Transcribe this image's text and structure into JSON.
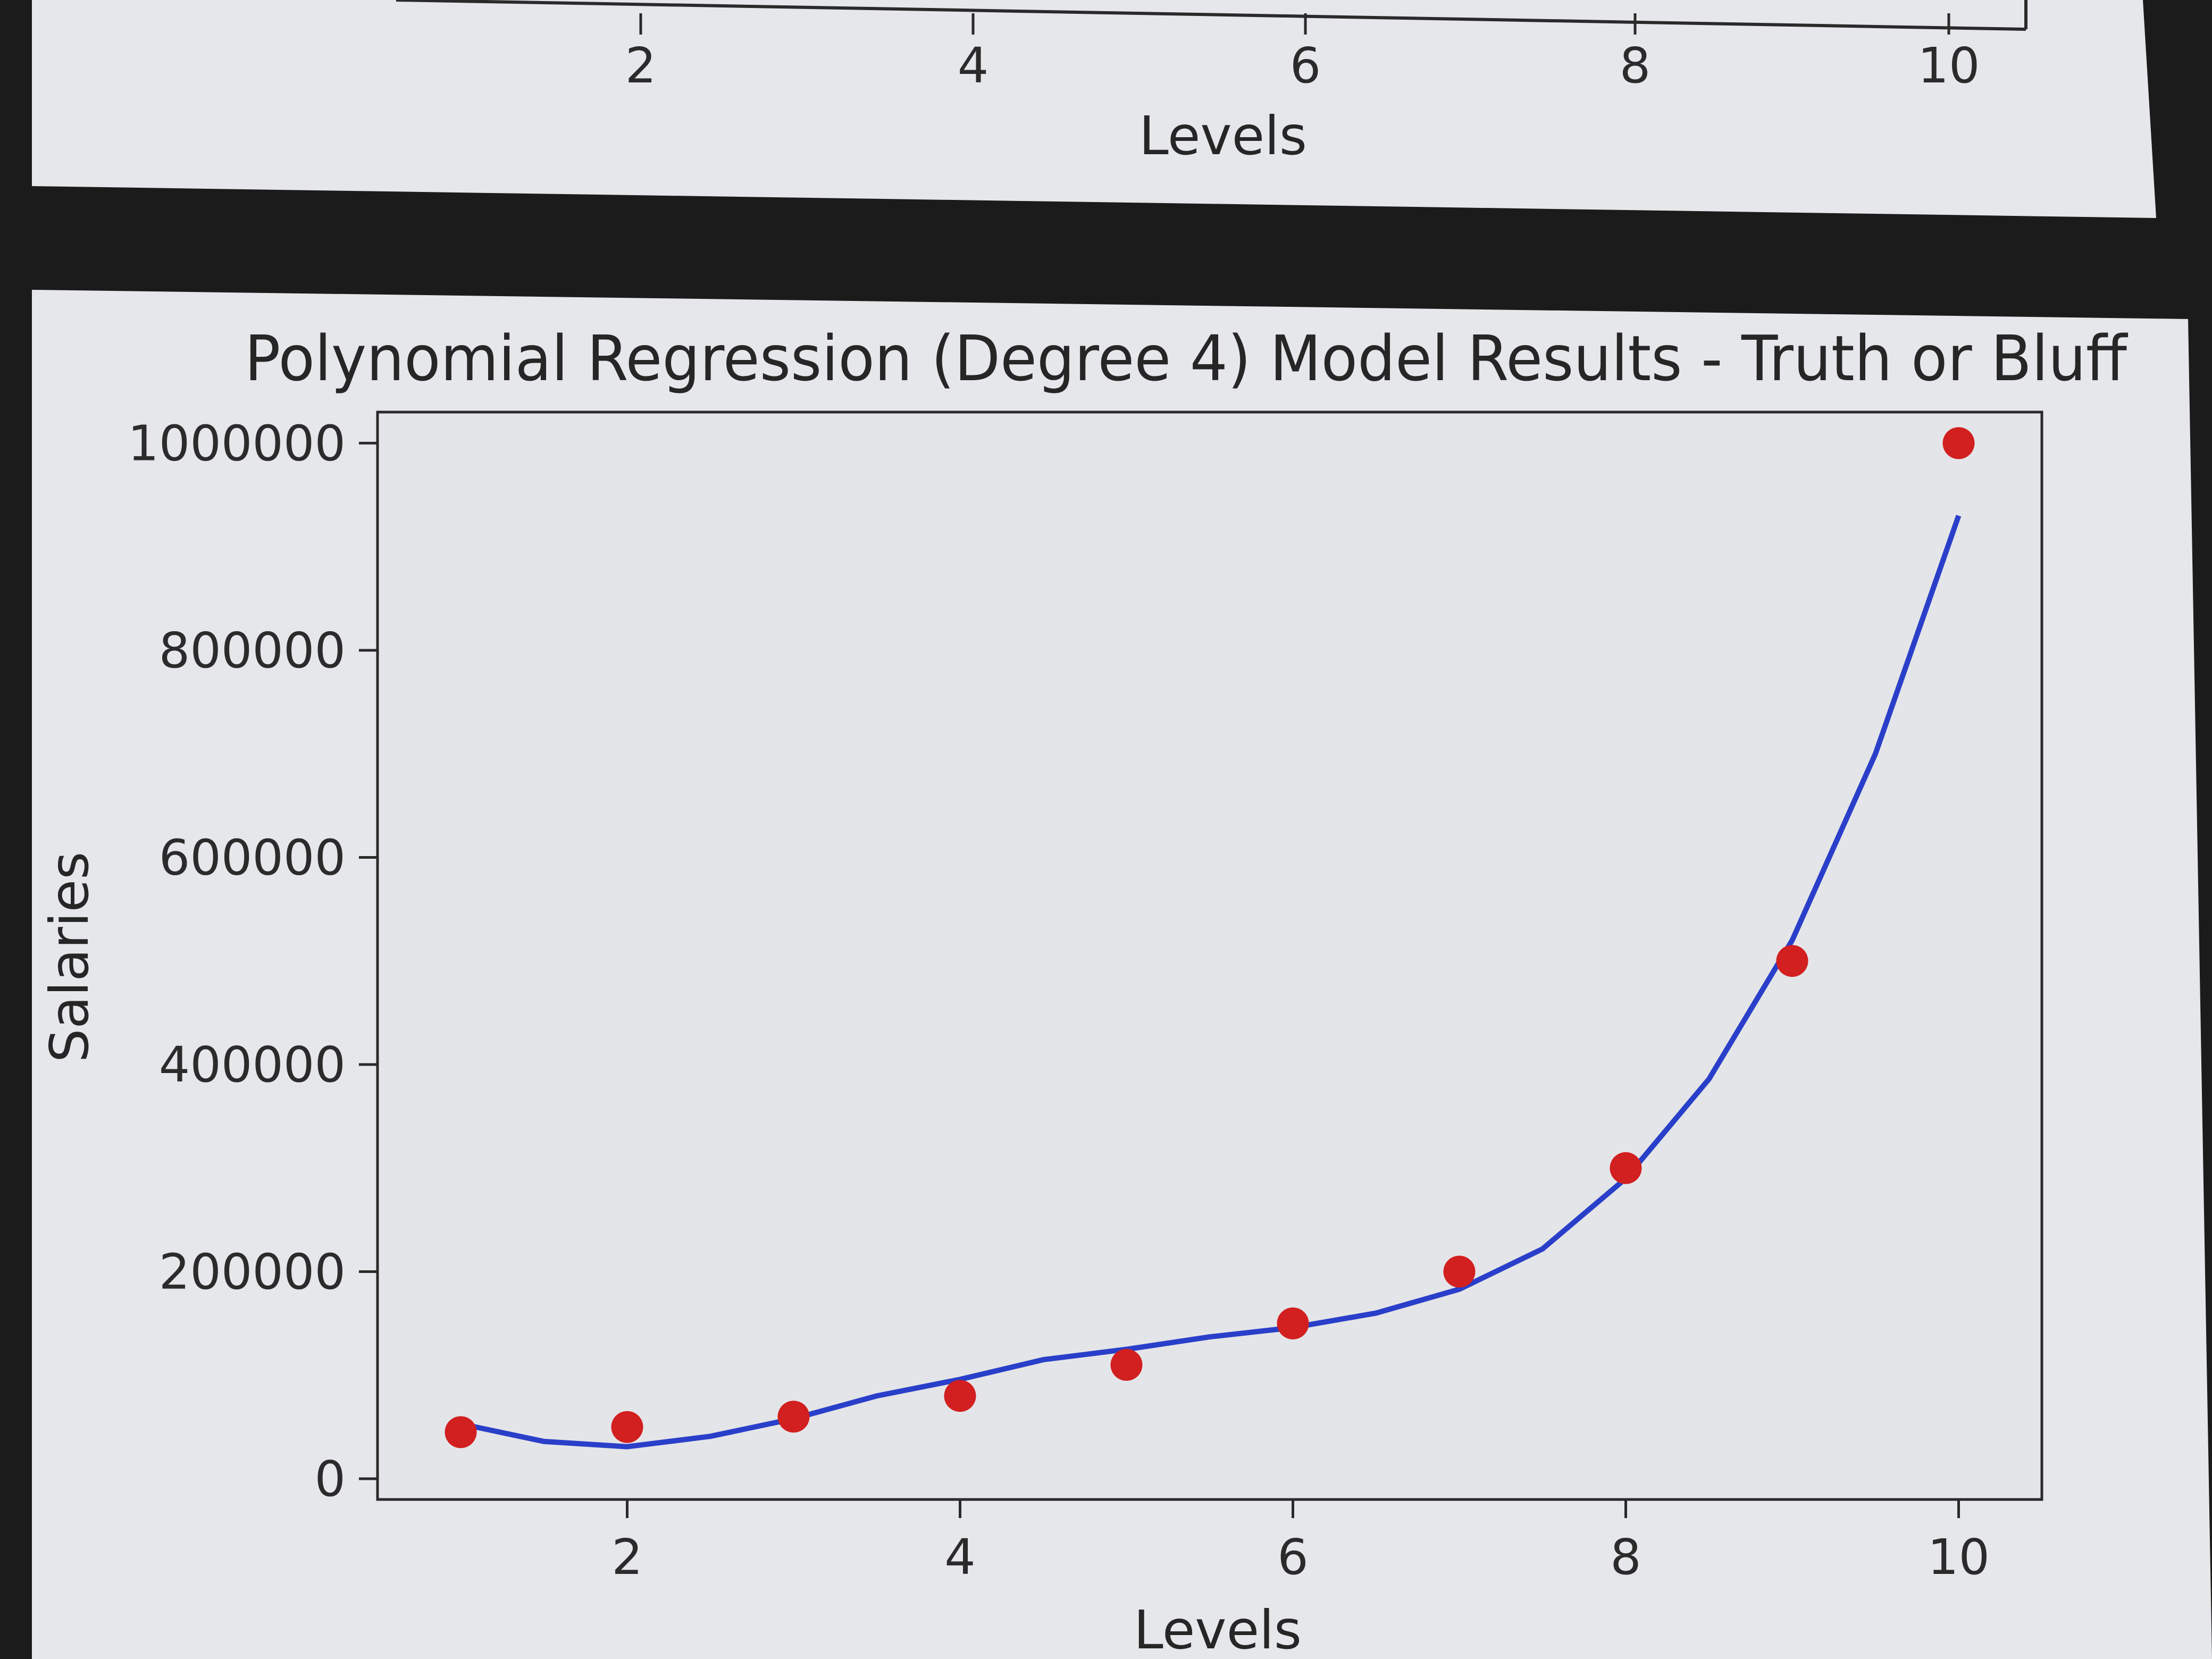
{
  "top_panel": {
    "xlabel": "Levels",
    "xticks": [
      "2",
      "4",
      "6",
      "8",
      "10"
    ]
  },
  "chart_data": {
    "type": "scatter",
    "title": "Polynomial Regression (Degree 4) Model Results - Truth or Bluff",
    "xlabel": "Levels",
    "ylabel": "Salaries",
    "xlim": [
      0.5,
      10.5
    ],
    "ylim": [
      -20000,
      1030000
    ],
    "xticks": [
      2,
      4,
      6,
      8,
      10
    ],
    "yticks": [
      0,
      200000,
      400000,
      600000,
      800000,
      1000000
    ],
    "xtick_labels": [
      "2",
      "4",
      "6",
      "8",
      "10"
    ],
    "ytick_labels": [
      "0",
      "200000",
      "400000",
      "600000",
      "800000",
      "1000000"
    ],
    "grid": false,
    "points": {
      "color": "#d21f1f",
      "x": [
        1,
        2,
        3,
        4,
        5,
        6,
        7,
        8,
        9,
        10
      ],
      "y": [
        45000,
        50000,
        60000,
        80000,
        110000,
        150000,
        200000,
        300000,
        500000,
        1000000
      ]
    },
    "fit_line": {
      "color": "#2a3fc9",
      "x": [
        1,
        1.5,
        2,
        2.5,
        3,
        3.5,
        4,
        4.5,
        5,
        5.5,
        6,
        6.5,
        7,
        7.5,
        8,
        8.5,
        9,
        9.5,
        10
      ],
      "y": [
        53000,
        36000,
        31000,
        41000,
        58000,
        80000,
        96000,
        115000,
        125000,
        137000,
        146000,
        160000,
        183000,
        222000,
        290000,
        386000,
        520000,
        700000,
        930000
      ]
    }
  }
}
